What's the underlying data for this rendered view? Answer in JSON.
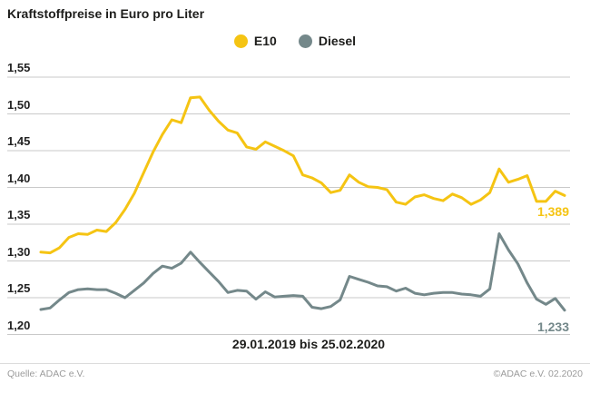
{
  "title": "Kraftstoffpreise in Euro pro Liter",
  "legend": [
    {
      "label": "E10",
      "color": "#F5C413"
    },
    {
      "label": "Diesel",
      "color": "#74888A"
    }
  ],
  "footer": {
    "source": "Quelle: ADAC e.V.",
    "copyright": "©ADAC e.V.  02.2020"
  },
  "colors": {
    "background": "#ffffff",
    "gridline": "#c9c9c9",
    "text": "#1d1d1b",
    "footer_text": "#9b9b9b"
  },
  "chart_data": {
    "type": "line",
    "title": "Kraftstoffpreise in Euro pro Liter",
    "x_caption": "29.01.2019 bis 25.02.2020",
    "x_start": "29.01.2019",
    "x_end": "25.02.2020",
    "x_interval": "weekly",
    "ylim": [
      1.2,
      1.55
    ],
    "grid": true,
    "legend_position": "top-center",
    "yticks": [
      {
        "label": "1,55",
        "value": 1.55
      },
      {
        "label": "1,50",
        "value": 1.5
      },
      {
        "label": "1,45",
        "value": 1.45
      },
      {
        "label": "1,40",
        "value": 1.4
      },
      {
        "label": "1,35",
        "value": 1.35
      },
      {
        "label": "1,30",
        "value": 1.3
      },
      {
        "label": "1,25",
        "value": 1.25
      },
      {
        "label": "1,20",
        "value": 1.2
      }
    ],
    "series": [
      {
        "name": "E10",
        "color": "#F5C413",
        "end_label": "1,389",
        "end_value": 1.389,
        "values": [
          1.312,
          1.311,
          1.318,
          1.332,
          1.337,
          1.336,
          1.342,
          1.34,
          1.352,
          1.37,
          1.392,
          1.42,
          1.448,
          1.472,
          1.492,
          1.488,
          1.522,
          1.523,
          1.505,
          1.49,
          1.478,
          1.474,
          1.455,
          1.452,
          1.462,
          1.456,
          1.45,
          1.443,
          1.417,
          1.413,
          1.406,
          1.393,
          1.396,
          1.417,
          1.407,
          1.401,
          1.4,
          1.397,
          1.38,
          1.377,
          1.387,
          1.39,
          1.385,
          1.382,
          1.391,
          1.386,
          1.377,
          1.383,
          1.393,
          1.425,
          1.407,
          1.411,
          1.416,
          1.381,
          1.381,
          1.395,
          1.389
        ]
      },
      {
        "name": "Diesel",
        "color": "#74888A",
        "end_label": "1,233",
        "end_value": 1.233,
        "values": [
          1.234,
          1.236,
          1.247,
          1.257,
          1.261,
          1.262,
          1.261,
          1.261,
          1.256,
          1.25,
          1.26,
          1.27,
          1.283,
          1.293,
          1.29,
          1.297,
          1.312,
          1.298,
          1.285,
          1.272,
          1.257,
          1.26,
          1.259,
          1.248,
          1.258,
          1.251,
          1.252,
          1.253,
          1.252,
          1.237,
          1.235,
          1.238,
          1.247,
          1.279,
          1.275,
          1.271,
          1.266,
          1.265,
          1.259,
          1.263,
          1.256,
          1.254,
          1.256,
          1.257,
          1.257,
          1.255,
          1.254,
          1.252,
          1.262,
          1.337,
          1.315,
          1.296,
          1.27,
          1.248,
          1.241,
          1.249,
          1.233
        ]
      }
    ]
  }
}
